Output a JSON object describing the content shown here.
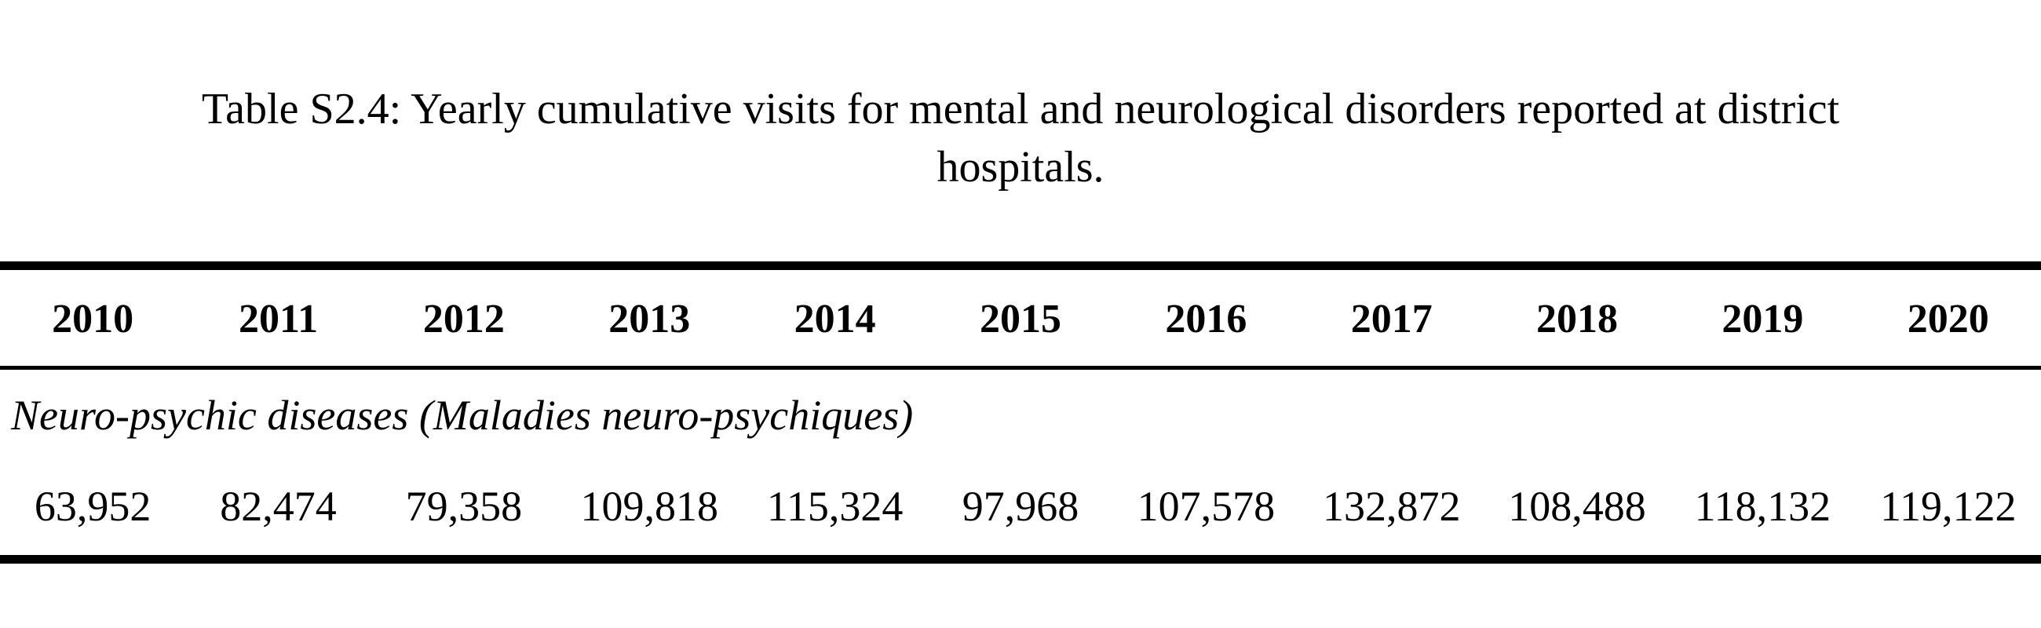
{
  "caption": {
    "line1": "Table S2.4: Yearly cumulative visits for mental and neurological disorders reported at district",
    "line2": "hospitals."
  },
  "table": {
    "headers": [
      "2010",
      "2011",
      "2012",
      "2013",
      "2014",
      "2015",
      "2016",
      "2017",
      "2018",
      "2019",
      "2020"
    ],
    "section_label": "Neuro-psychic diseases (Maladies neuro-psychiques)",
    "rows": [
      [
        "63,952",
        "82,474",
        "79,358",
        "109,818",
        "115,324",
        "97,968",
        "107,578",
        "132,872",
        "108,488",
        "118,132",
        "119,122"
      ]
    ]
  }
}
